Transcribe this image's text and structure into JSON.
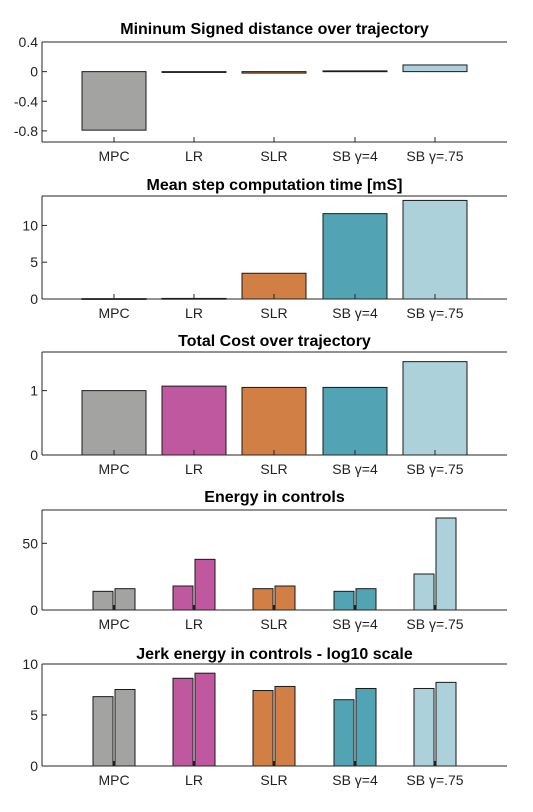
{
  "chart_data": [
    {
      "type": "bar",
      "title": "Mininum Signed distance over trajectory",
      "categories": [
        "MPC",
        "LR",
        "SLR",
        "SB γ=4",
        "SB γ=.75"
      ],
      "values": [
        -0.79,
        -0.01,
        -0.02,
        0.01,
        0.09
      ],
      "ylim": [
        -0.95,
        0.4
      ],
      "yticks": [
        0.4,
        0,
        -0.4,
        -0.8
      ],
      "ytick_labels": [
        "0.4",
        "0",
        "-0.4",
        "-0.8"
      ]
    },
    {
      "type": "bar",
      "title": "Mean step computation time [mS]",
      "categories": [
        "MPC",
        "LR",
        "SLR",
        "SB γ=4",
        "SB γ=.75"
      ],
      "values": [
        0.05,
        0.08,
        3.5,
        11.6,
        13.4
      ],
      "ylim": [
        0,
        14
      ],
      "yticks": [
        0,
        5,
        10
      ],
      "ytick_labels": [
        "0",
        "5",
        "10"
      ]
    },
    {
      "type": "bar",
      "title": "Total Cost over trajectory",
      "categories": [
        "MPC",
        "LR",
        "SLR",
        "SB γ=4",
        "SB γ=.75"
      ],
      "values": [
        1.0,
        1.07,
        1.05,
        1.05,
        1.45
      ],
      "ylim": [
        0,
        1.6
      ],
      "yticks": [
        0,
        1
      ],
      "ytick_labels": [
        "0",
        "1"
      ]
    },
    {
      "type": "bar",
      "title": "Energy in controls",
      "categories": [
        "MPC",
        "LR",
        "SLR",
        "SB γ=4",
        "SB γ=.75"
      ],
      "series": [
        {
          "values": [
            14,
            18,
            16,
            14,
            27
          ]
        },
        {
          "values": [
            16,
            38,
            18,
            16,
            69
          ]
        }
      ],
      "ylim": [
        0,
        75
      ],
      "yticks": [
        0,
        50
      ],
      "ytick_labels": [
        "0",
        "50"
      ]
    },
    {
      "type": "bar",
      "title": "Jerk energy in controls - log10 scale",
      "categories": [
        "MPC",
        "LR",
        "SLR",
        "SB γ=4",
        "SB γ=.75"
      ],
      "series": [
        {
          "values": [
            6.8,
            8.6,
            7.4,
            6.5,
            7.6
          ]
        },
        {
          "values": [
            7.5,
            9.1,
            7.8,
            7.6,
            8.2
          ]
        }
      ],
      "ylim": [
        0,
        10
      ],
      "yticks": [
        0,
        5,
        10
      ],
      "ytick_labels": [
        "0",
        "5",
        "10"
      ]
    }
  ],
  "colors": {
    "MPC": "#a3a3a1",
    "LR": "#c058a0",
    "SLR": "#d17f45",
    "SB γ=4": "#52a4b5",
    "SB γ=.75": "#add1da"
  }
}
